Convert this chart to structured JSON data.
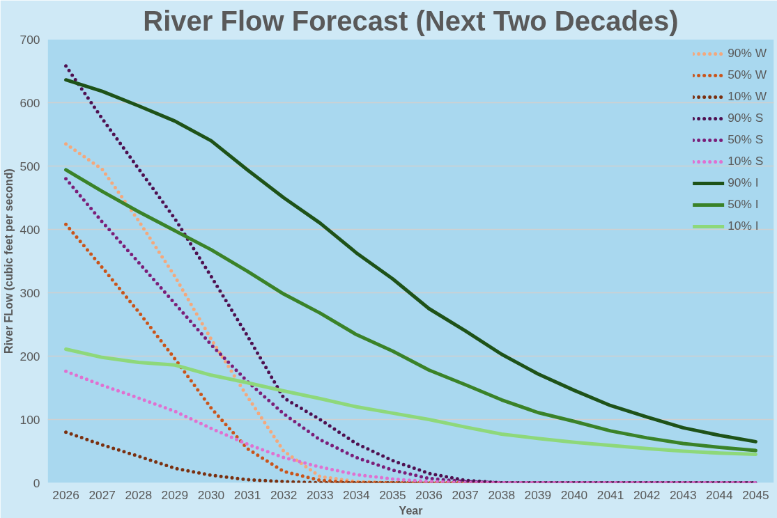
{
  "chart_data": {
    "type": "line",
    "title": "River Flow Forecast (Next Two Decades)",
    "xlabel": "Year",
    "ylabel": "River FLow (cubic feet per second)",
    "categories": [
      "2026",
      "2027",
      "2028",
      "2029",
      "2030",
      "2031",
      "2032",
      "2033",
      "2034",
      "2035",
      "2036",
      "2037",
      "2038",
      "2039",
      "2040",
      "2041",
      "2042",
      "2043",
      "2044",
      "2045"
    ],
    "ylim": [
      0,
      700
    ],
    "yticks": [
      0,
      100,
      200,
      300,
      400,
      500,
      600,
      700
    ],
    "grid": "y",
    "legend": "top right",
    "marker": "none",
    "series": [
      {
        "name": "90% W",
        "color": "#f4a87c",
        "line_style": "dotted",
        "values": [
          535,
          495,
          414,
          326,
          227,
          136,
          50,
          10,
          2,
          0,
          0,
          0,
          0,
          null,
          null,
          null,
          null,
          null,
          null,
          null
        ]
      },
      {
        "name": "50% W",
        "color": "#c9541a",
        "line_style": "dotted",
        "values": [
          408,
          340,
          270,
          196,
          118,
          54,
          18,
          4,
          0,
          0,
          0,
          0,
          0,
          null,
          null,
          null,
          null,
          null,
          null,
          null
        ]
      },
      {
        "name": "10% W",
        "color": "#7a3010",
        "line_style": "dotted",
        "values": [
          80,
          60,
          42,
          23,
          12,
          5,
          2,
          0,
          0,
          0,
          0,
          0,
          0,
          0,
          0,
          0,
          0,
          0,
          0,
          0
        ]
      },
      {
        "name": "90% S",
        "color": "#4e1050",
        "line_style": "dotted",
        "values": [
          658,
          575,
          496,
          417,
          326,
          232,
          134,
          100,
          62,
          35,
          15,
          4,
          0,
          0,
          0,
          0,
          0,
          0,
          0,
          0
        ]
      },
      {
        "name": "50% S",
        "color": "#7a1e78",
        "line_style": "dotted",
        "values": [
          480,
          412,
          348,
          283,
          218,
          160,
          109,
          68,
          40,
          20,
          7,
          2,
          0,
          0,
          0,
          0,
          0,
          0,
          0,
          0
        ]
      },
      {
        "name": "10% S",
        "color": "#e070d0",
        "line_style": "dotted",
        "values": [
          176,
          154,
          134,
          113,
          86,
          61,
          40,
          25,
          13,
          6,
          2,
          0,
          0,
          0,
          0,
          0,
          0,
          0,
          0,
          0
        ]
      },
      {
        "name": "90% I",
        "color": "#1e5218",
        "line_style": "solid",
        "values": [
          636,
          618,
          595,
          571,
          540,
          494,
          450,
          410,
          363,
          322,
          275,
          240,
          203,
          172,
          146,
          122,
          104,
          87,
          75,
          65
        ]
      },
      {
        "name": "50% I",
        "color": "#3a8228",
        "line_style": "solid",
        "values": [
          494,
          460,
          428,
          398,
          368,
          334,
          298,
          268,
          234,
          208,
          178,
          155,
          131,
          111,
          97,
          82,
          71,
          62,
          56,
          51
        ]
      },
      {
        "name": "10% I",
        "color": "#8ed87a",
        "line_style": "solid",
        "values": [
          211,
          198,
          190,
          186,
          170,
          158,
          145,
          133,
          120,
          110,
          100,
          88,
          77,
          70,
          64,
          59,
          54,
          50,
          47,
          45
        ]
      }
    ]
  }
}
